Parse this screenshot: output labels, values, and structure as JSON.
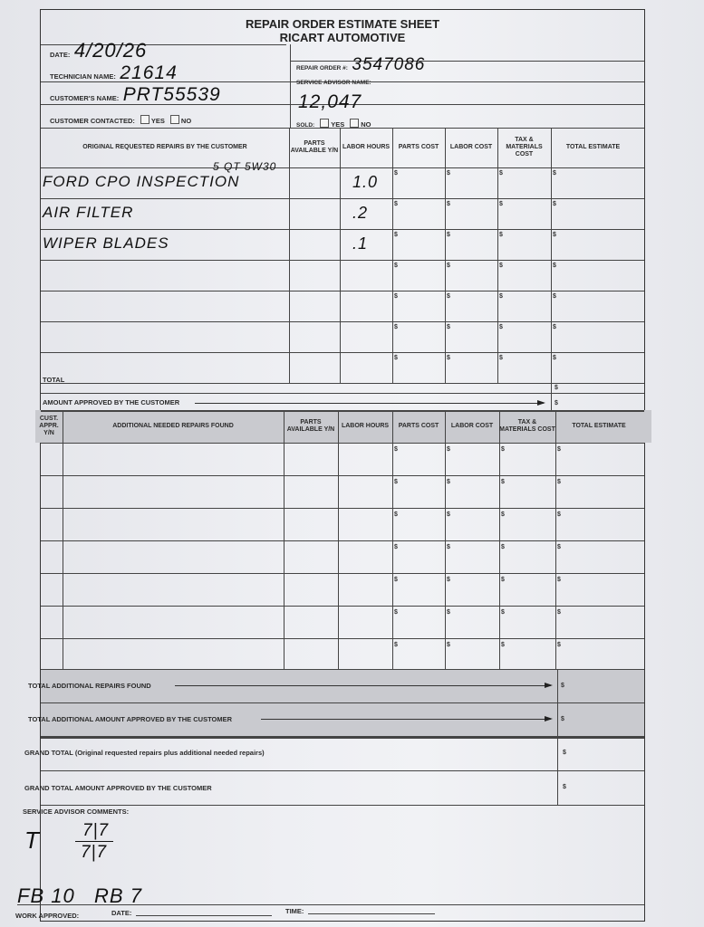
{
  "header": {
    "title": "REPAIR ORDER ESTIMATE SHEET",
    "company": "RICART AUTOMOTIVE"
  },
  "fields": {
    "date_label": "DATE:",
    "date_value": "4/20/26",
    "technician_label": "TECHNICIAN NAME:",
    "technician_value": "21614",
    "customer_label": "CUSTOMER'S NAME:",
    "customer_value": "PRT55539",
    "contacted_label": "CUSTOMER CONTACTED:",
    "yes": "YES",
    "no": "NO",
    "repair_order_label": "REPAIR ORDER #:",
    "repair_order_value": "3547086",
    "advisor_label": "SERVICE ADVISOR NAME:",
    "advisor_value": "12,047",
    "sold_label": "SOLD:"
  },
  "original": {
    "columns": [
      "ORIGINAL REQUESTED REPAIRS BY THE CUSTOMER",
      "PARTS AVAILABLE Y/N",
      "LABOR HOURS",
      "PARTS COST",
      "LABOR COST",
      "TAX & MATERIALS COST",
      "TOTAL ESTIMATE"
    ],
    "note": "5 QT 5W30",
    "rows": [
      {
        "repair": "FORD CPO INSPECTION",
        "hours": "1.0"
      },
      {
        "repair": "AIR FILTER",
        "hours": ".2"
      },
      {
        "repair": "WIPER BLADES",
        "hours": ".1"
      },
      {
        "repair": "",
        "hours": ""
      },
      {
        "repair": "",
        "hours": ""
      },
      {
        "repair": "",
        "hours": ""
      },
      {
        "repair": "",
        "hours": ""
      }
    ],
    "total_label": "TOTAL",
    "approved_label": "AMOUNT APPROVED BY THE CUSTOMER"
  },
  "additional": {
    "columns": [
      "CUST. APPR. Y/N",
      "ADDITIONAL NEEDED REPAIRS FOUND",
      "PARTS AVAILABLE Y/N",
      "LABOR HOURS",
      "PARTS COST",
      "LABOR COST",
      "TAX & MATERIALS COST",
      "TOTAL ESTIMATE"
    ],
    "total_label": "TOTAL ADDITIONAL REPAIRS FOUND",
    "approved_label": "TOTAL ADDITIONAL AMOUNT APPROVED BY THE CUSTOMER"
  },
  "grand": {
    "total_label": "GRAND TOTAL (Original requested repairs plus additional needed repairs)",
    "approved_label": "GRAND TOTAL AMOUNT APPROVED BY THE CUSTOMER"
  },
  "comments": {
    "label": "SERVICE ADVISOR COMMENTS:",
    "line1_left": "T",
    "frac_top": "7|7",
    "frac_bottom": "7|7",
    "line2": "FB 10   RB 7"
  },
  "footer": {
    "work_approved": "WORK APPROVED:",
    "date": "DATE:",
    "time": "TIME:"
  },
  "currency": "$"
}
